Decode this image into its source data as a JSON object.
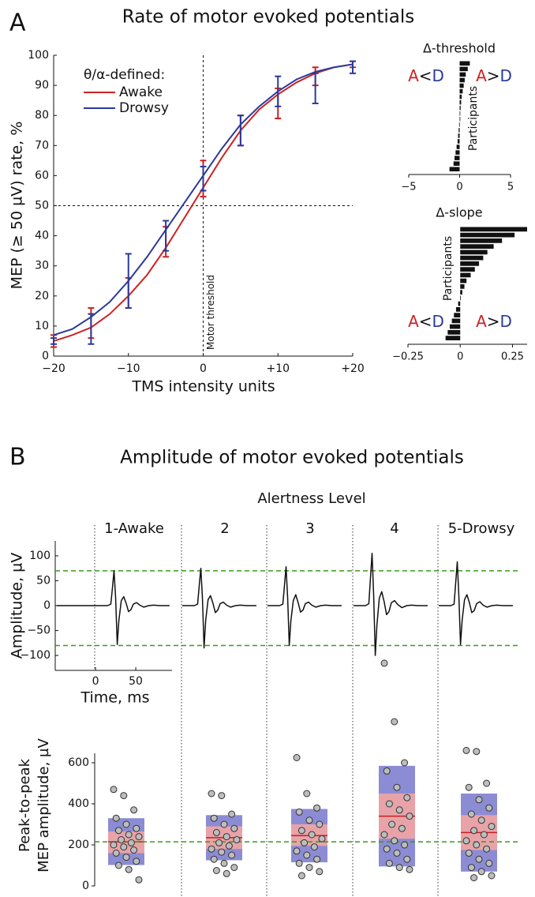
{
  "chart_data": [
    {
      "type": "line",
      "panel": "A",
      "title": "Rate of motor evoked potentials",
      "xlabel": "TMS intensity units",
      "ylabel": "MEP (≥ 50 µV) rate, %",
      "xlim": [
        -20,
        20
      ],
      "xticks": [
        {
          "value": -20,
          "label": "−20"
        },
        {
          "value": -10,
          "label": "−10"
        },
        0,
        {
          "value": 10,
          "label": "+10"
        },
        {
          "value": 20,
          "label": "+20"
        }
      ],
      "ylim": [
        0,
        100
      ],
      "yticks": [
        0,
        10,
        20,
        30,
        40,
        50,
        60,
        70,
        80,
        90,
        100
      ],
      "hlines": [
        50
      ],
      "vlines": [
        0
      ],
      "vline_label": "Motor threshold",
      "legend_title": "θ/α-defined:",
      "x": [
        -20,
        -17.5,
        -15,
        -12.5,
        -10,
        -7.5,
        -5,
        -2.5,
        0,
        2.5,
        5,
        7.5,
        10,
        12.5,
        15,
        17.5,
        20
      ],
      "series": [
        {
          "name": "Awake",
          "color": "#cc2222",
          "values": [
            5,
            7,
            9.5,
            14,
            20,
            27,
            36,
            46,
            56,
            66,
            75,
            82,
            87,
            91,
            94,
            96,
            97
          ],
          "errorbars": {
            "x": [
              -20,
              -15,
              -10,
              -5,
              0,
              5,
              10,
              15,
              20
            ],
            "values": [
              5,
              11,
              21,
              38,
              59,
              75,
              84,
              93,
              97
            ],
            "errors": [
              2,
              5,
              5,
              5,
              6,
              5,
              5,
              3,
              1
            ]
          }
        },
        {
          "name": "Drowsy",
          "color": "#2a3a9a",
          "values": [
            7,
            9,
            13,
            18,
            25,
            33,
            42,
            51,
            60,
            69,
            77,
            83,
            88,
            92,
            94.5,
            96,
            97
          ],
          "errorbars": {
            "x": [
              -20,
              -15,
              -10,
              -5,
              0,
              5,
              10,
              15,
              20
            ],
            "values": [
              5,
              9,
              25,
              40,
              59,
              75,
              88,
              89,
              96
            ],
            "errors": [
              1,
              5,
              9,
              5,
              4,
              5,
              5,
              5,
              2
            ]
          }
        }
      ]
    },
    {
      "type": "hbar",
      "title": "Δ-threshold",
      "ylabel": "Participants",
      "color": "#111111",
      "xlim": [
        -5,
        5
      ],
      "xticks": [
        {
          "value": -5,
          "label": "−5"
        },
        0,
        5
      ],
      "annotations": {
        "left": "A<D",
        "right": "A>D"
      },
      "values": [
        1.0,
        0.8,
        0.6,
        0.5,
        0.4,
        0.3,
        0.2,
        0.15,
        0.1,
        0.05,
        0,
        -0.05,
        -0.1,
        -0.15,
        -0.2,
        -0.3,
        -0.4,
        -0.5,
        -0.6,
        -1.0
      ]
    },
    {
      "type": "hbar",
      "title": "Δ-slope",
      "ylabel": "Participants",
      "color": "#111111",
      "xlim": [
        -0.25,
        0.32
      ],
      "xticks": [
        {
          "value": -0.25,
          "label": "−0.25"
        },
        0,
        0.25
      ],
      "annotations": {
        "left": "A<D",
        "right": "A>D"
      },
      "values": [
        0.32,
        0.26,
        0.2,
        0.16,
        0.13,
        0.11,
        0.09,
        0.07,
        0.05,
        0.03,
        0.02,
        0.01,
        0,
        -0.01,
        -0.02,
        -0.03,
        -0.04,
        -0.05,
        -0.06,
        -0.07
      ]
    },
    {
      "type": "waveform",
      "panel": "B",
      "title": "Amplitude of motor evoked potentials",
      "group_label": "Alertness Level",
      "xlabel": "Time, ms",
      "ylabel": "Amplitude, µV",
      "color": "#111111",
      "xlim": [
        -50,
        95
      ],
      "xticks": [
        0,
        50
      ],
      "ylim": [
        -130,
        130
      ],
      "yticks": [
        {
          "value": -100,
          "label": "−100"
        },
        {
          "value": -50,
          "label": "−50"
        },
        0,
        50,
        100
      ],
      "hlines": [
        70,
        -80
      ],
      "hline_color": "#3a9a1a",
      "series": [
        {
          "name": "1-Awake",
          "x": [
            -48,
            0,
            15,
            19,
            21,
            23,
            25,
            27,
            29,
            32,
            35,
            38,
            41,
            44,
            47,
            51,
            55,
            60,
            66,
            72,
            80,
            92
          ],
          "values": [
            0,
            0,
            0,
            3,
            35,
            70,
            15,
            -78,
            -30,
            10,
            18,
            5,
            -12,
            -8,
            3,
            6,
            1,
            -3,
            0,
            1,
            0,
            0
          ]
        },
        {
          "name": "2",
          "x": [
            0,
            15,
            19,
            21,
            23,
            25,
            27,
            29,
            32,
            35,
            38,
            41,
            44,
            47,
            51,
            55,
            60,
            66,
            72,
            80,
            92
          ],
          "values": [
            0,
            0,
            3,
            40,
            75,
            15,
            -85,
            -30,
            12,
            20,
            5,
            -14,
            -9,
            4,
            7,
            1,
            -3,
            0,
            1,
            0,
            0
          ]
        },
        {
          "name": "3",
          "x": [
            0,
            15,
            19,
            21,
            23,
            25,
            27,
            29,
            32,
            35,
            38,
            41,
            44,
            47,
            51,
            55,
            60,
            66,
            72,
            80,
            92
          ],
          "values": [
            0,
            0,
            3,
            40,
            78,
            15,
            -80,
            -30,
            10,
            22,
            6,
            -13,
            -9,
            4,
            7,
            1,
            -3,
            0,
            1,
            0,
            0
          ]
        },
        {
          "name": "4",
          "x": [
            0,
            15,
            19,
            21,
            23,
            25,
            27,
            29,
            32,
            35,
            38,
            41,
            44,
            47,
            51,
            55,
            60,
            66,
            72,
            80,
            92
          ],
          "values": [
            0,
            0,
            4,
            55,
            105,
            20,
            -100,
            -40,
            15,
            28,
            8,
            -18,
            -12,
            6,
            10,
            2,
            -4,
            0,
            1,
            0,
            0
          ]
        },
        {
          "name": "5-Drowsy",
          "x": [
            0,
            15,
            19,
            21,
            23,
            25,
            27,
            29,
            32,
            35,
            38,
            41,
            44,
            47,
            51,
            55,
            60,
            66,
            72,
            80,
            92
          ],
          "values": [
            0,
            0,
            3,
            45,
            88,
            18,
            -78,
            -30,
            12,
            22,
            6,
            -14,
            -10,
            4,
            8,
            1,
            -3,
            0,
            1,
            0,
            0
          ]
        }
      ]
    },
    {
      "type": "box",
      "ylabel": [
        "Peak-to-peak",
        "MEP amplitude, µV"
      ],
      "ylim": [
        0,
        1100
      ],
      "yticks": [
        0,
        200,
        400,
        600
      ],
      "hlines": [
        215
      ],
      "hline_color": "#3a9a1a",
      "outer_color": "#8c8cd4",
      "inner_color": "#e8a3a8",
      "median_color": "#c42020",
      "groups": [
        {
          "outer": [
            102,
            330
          ],
          "inner": [
            160,
            265
          ],
          "median": 215,
          "points": [
            470,
            440,
            370,
            330,
            300,
            280,
            270,
            250,
            240,
            225,
            210,
            200,
            190,
            175,
            160,
            140,
            120,
            100,
            80,
            30
          ]
        },
        {
          "outer": [
            125,
            345
          ],
          "inner": [
            180,
            290
          ],
          "median": 235,
          "points": [
            450,
            440,
            350,
            330,
            300,
            280,
            260,
            240,
            225,
            210,
            195,
            180,
            165,
            150,
            130,
            110,
            90,
            75,
            60
          ]
        },
        {
          "outer": [
            115,
            375
          ],
          "inner": [
            195,
            300
          ],
          "median": 245,
          "points": [
            625,
            450,
            380,
            360,
            320,
            300,
            270,
            250,
            230,
            210,
            190,
            170,
            150,
            130,
            110,
            90,
            70,
            50
          ]
        },
        {
          "outer": [
            95,
            585
          ],
          "inner": [
            230,
            450
          ],
          "median": 340,
          "points": [
            1085,
            800,
            600,
            560,
            480,
            430,
            400,
            370,
            340,
            300,
            280,
            250,
            220,
            200,
            180,
            160,
            130,
            110,
            90,
            80
          ]
        },
        {
          "outer": [
            70,
            450
          ],
          "inner": [
            175,
            345
          ],
          "median": 260,
          "points": [
            660,
            655,
            500,
            480,
            420,
            380,
            350,
            320,
            290,
            270,
            250,
            220,
            200,
            180,
            160,
            130,
            110,
            90,
            70,
            50,
            40
          ]
        }
      ]
    }
  ]
}
